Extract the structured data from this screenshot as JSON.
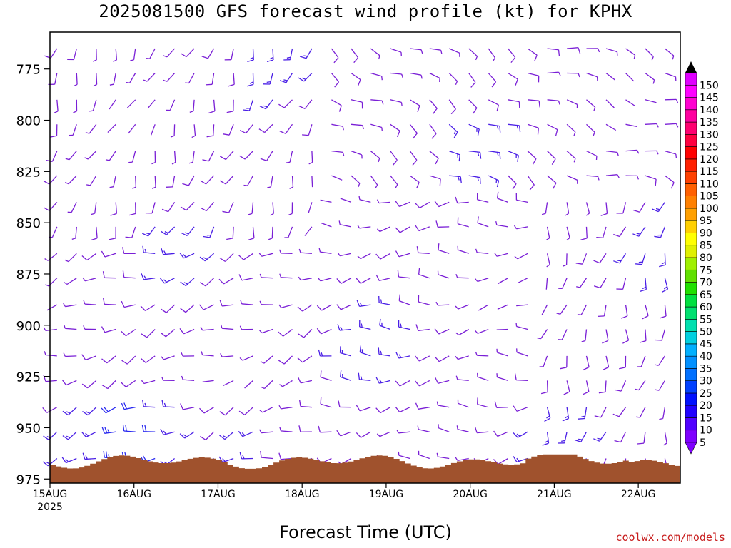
{
  "title": "2025081500 GFS forecast wind profile (kt) for KPHX",
  "x_axis_title": "Forecast Time (UTC)",
  "credit": "coolwx.com/models",
  "colors": {
    "terrain": "#a0522d",
    "barb_default": "#7a1fd6",
    "barb_strong": "#2a2af0"
  },
  "chart_data": {
    "type": "wind_barb_profile",
    "title": "2025081500 GFS forecast wind profile (kt) for KPHX",
    "xlabel": "Forecast Time (UTC)",
    "ylabel": "",
    "y_ticks": [
      775,
      800,
      825,
      850,
      875,
      900,
      925,
      950,
      975
    ],
    "y_range_hPa": [
      757,
      977
    ],
    "x_ticks": [
      "15AUG",
      "16AUG",
      "17AUG",
      "18AUG",
      "19AUG",
      "20AUG",
      "21AUG",
      "22AUG"
    ],
    "x_tick_sublabel": "2025",
    "x_range_days": [
      "15AUG 00Z",
      "22AUG 12Z"
    ],
    "levels_hPa": [
      765,
      777,
      790,
      802,
      815,
      827,
      840,
      852,
      865,
      877,
      890,
      902,
      915,
      927,
      940,
      952,
      965
    ],
    "forecast_times_hours": [
      0,
      6,
      12,
      18,
      24,
      30,
      36,
      42,
      48,
      54,
      60,
      66,
      72,
      78,
      84,
      90,
      96,
      102,
      108,
      114,
      120,
      126,
      132,
      138,
      144,
      150,
      156,
      162,
      168,
      174,
      180
    ],
    "wind_direction_pattern_by_period": [
      {
        "period": "15AUG-17AUG",
        "upper_levels": "southerly to southwesterly",
        "lower_levels": "variable / westerly"
      },
      {
        "period": "18AUG-20AUG",
        "upper_levels": "east-southeasterly",
        "lower_levels": "westerly to west-southwesterly"
      },
      {
        "period": "21AUG-22AUG",
        "upper_levels": "easterly to southeasterly",
        "lower_levels": "variable / southerly"
      }
    ],
    "typical_speed_kt": [
      5,
      15
    ],
    "max_speed_kt_near_surface": 25,
    "surface_pressure_hPa_range": [
      963,
      970
    ],
    "colorbar": {
      "label_values": [
        5,
        10,
        15,
        20,
        25,
        30,
        35,
        40,
        45,
        50,
        55,
        60,
        65,
        70,
        75,
        80,
        85,
        90,
        95,
        100,
        105,
        110,
        115,
        120,
        125,
        130,
        135,
        140,
        145,
        150
      ],
      "colors": [
        "#7f00ff",
        "#5000ff",
        "#2000ff",
        "#0010ff",
        "#0040ff",
        "#0070ff",
        "#0090ff",
        "#00b0ff",
        "#00d0e0",
        "#00e0b0",
        "#00e070",
        "#00e040",
        "#20e000",
        "#60e000",
        "#a0f000",
        "#e0f000",
        "#ffff00",
        "#ffd000",
        "#ffa000",
        "#ff8000",
        "#ff6000",
        "#ff4000",
        "#ff2000",
        "#ff0000",
        "#ff0040",
        "#ff0070",
        "#ff00a0",
        "#ff00d0",
        "#ff00ff",
        "#e000ff"
      ],
      "extends": "both"
    }
  }
}
